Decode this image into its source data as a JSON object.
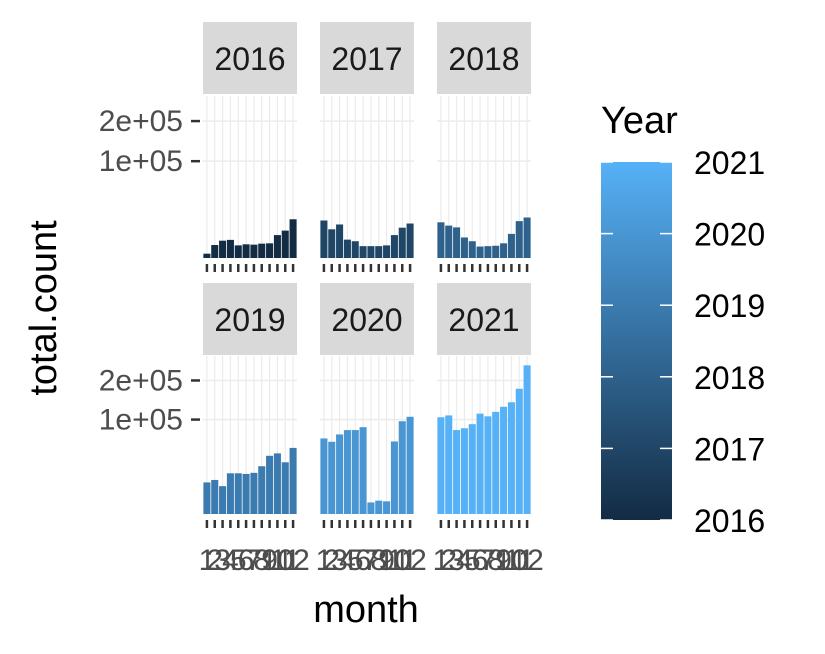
{
  "chart_data": {
    "type": "bar",
    "facet_by": "Year",
    "facets": [
      "2016",
      "2017",
      "2018",
      "2019",
      "2020",
      "2021"
    ],
    "xlabel": "month",
    "ylabel": "total.count",
    "x": [
      "1",
      "2",
      "3",
      "4",
      "5",
      "6",
      "7",
      "8",
      "9",
      "10",
      "11",
      "12"
    ],
    "y_scale": "sqrt",
    "y_ticks": [
      100000,
      200000
    ],
    "y_tick_labels": [
      "1e+05",
      "2e+05"
    ],
    "x_tick_labels": [
      "1",
      "2",
      "3",
      "4",
      "5",
      "6",
      "7",
      "8",
      "9",
      "10",
      "11",
      "12"
    ],
    "series": [
      {
        "year": 2016,
        "values": [
          200,
          1800,
          3200,
          3500,
          1700,
          2000,
          1900,
          2200,
          2300,
          5600,
          8000,
          16000
        ]
      },
      {
        "year": 2017,
        "values": [
          15000,
          8800,
          12000,
          3600,
          3000,
          1500,
          1500,
          1500,
          1700,
          5600,
          9800,
          12700
        ]
      },
      {
        "year": 2018,
        "values": [
          13600,
          11200,
          10000,
          4500,
          3000,
          1400,
          1500,
          1600,
          2300,
          6200,
          14500,
          17500
        ]
      },
      {
        "year": 2019,
        "values": [
          11200,
          13000,
          8700,
          18600,
          18600,
          18000,
          19000,
          25600,
          38000,
          41200,
          30000,
          49000
        ]
      },
      {
        "year": 2020,
        "values": [
          64000,
          58500,
          71000,
          79000,
          79000,
          84500,
          1500,
          2000,
          1800,
          59000,
          96500,
          106000
        ]
      },
      {
        "year": 2021,
        "values": [
          105000,
          109000,
          79000,
          82500,
          90500,
          113000,
          107000,
          117000,
          129000,
          140000,
          176000,
          248000
        ]
      }
    ],
    "legend": {
      "title": "Year",
      "type": "colorbar",
      "labels": [
        "2016",
        "2017",
        "2018",
        "2019",
        "2020",
        "2021"
      ],
      "colors": {
        "low": "#132b43",
        "high": "#56b1f7"
      },
      "placement": "right"
    },
    "colors": {
      "strip_bg": "#d9d9d9",
      "grid": "#ebebeb",
      "tick": "#333333"
    }
  }
}
